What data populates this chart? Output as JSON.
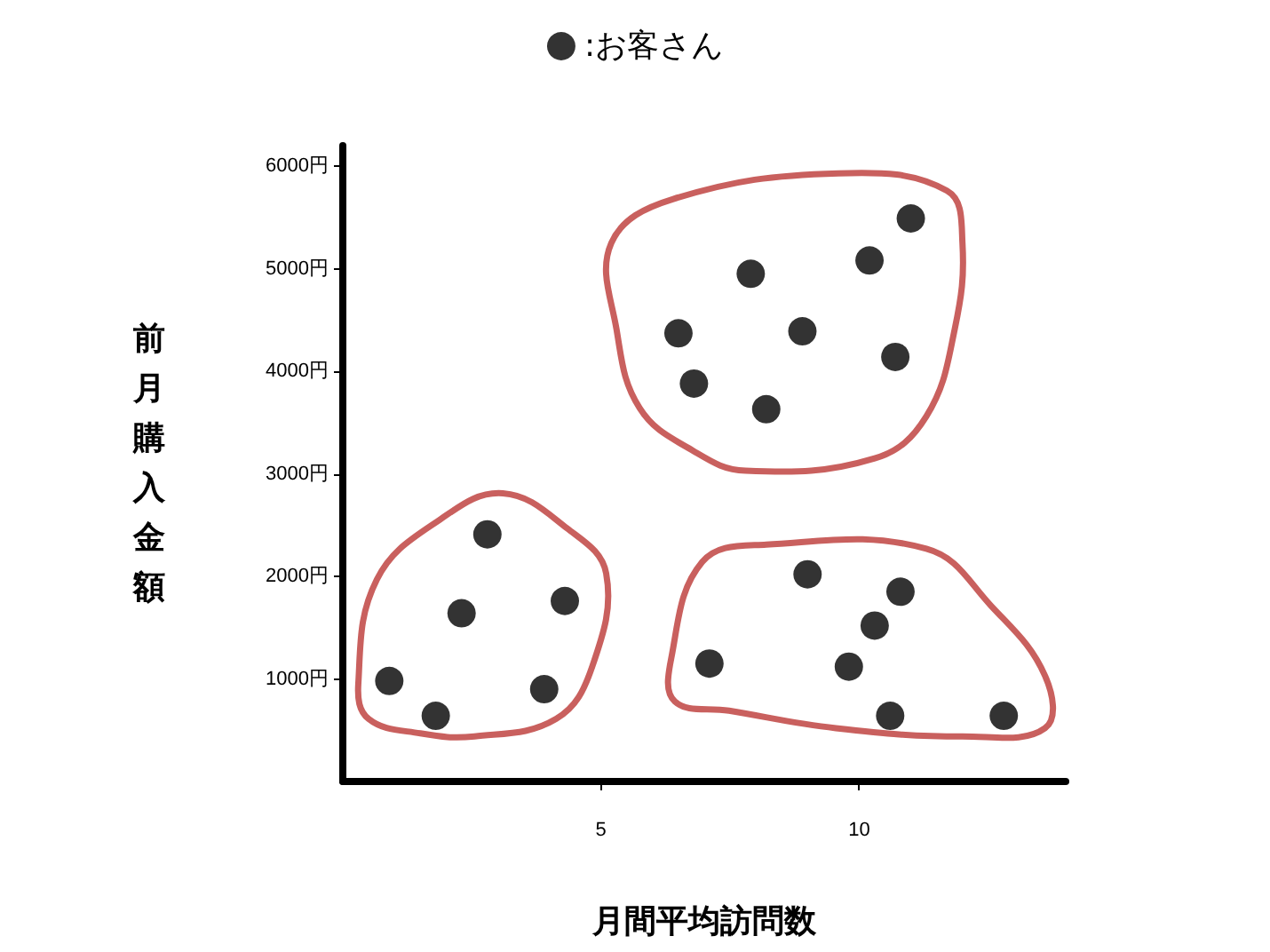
{
  "chart_data": {
    "type": "scatter",
    "xlabel": "月間平均訪問数",
    "ylabel": "前月購入金額",
    "legend": "top",
    "marker": "circle",
    "grid": false,
    "xlim": [
      0,
      14
    ],
    "xticks": [
      5,
      10
    ],
    "ylim": [
      0,
      6200
    ],
    "yticks": [
      {
        "value": 1000,
        "label": "1000円"
      },
      {
        "value": 2000,
        "label": "2000円"
      },
      {
        "value": 3000,
        "label": "3000円"
      },
      {
        "value": 4000,
        "label": "4000円"
      },
      {
        "value": 5000,
        "label": "5000円"
      },
      {
        "value": 6000,
        "label": "6000円"
      }
    ],
    "series": [
      {
        "name": ":お客さん",
        "color": "#000000",
        "x": [
          0.9,
          1.8,
          2.3,
          2.8,
          3.9,
          4.3,
          6.5,
          6.8,
          7.9,
          8.2,
          8.9,
          10.2,
          10.7,
          11.0,
          7.1,
          9.0,
          9.8,
          10.3,
          10.6,
          10.8,
          12.8
        ],
        "values": [
          980,
          640,
          1640,
          2410,
          900,
          1760,
          4370,
          3880,
          4950,
          3630,
          4390,
          5080,
          4140,
          5490,
          1150,
          2020,
          1120,
          1520,
          640,
          1850,
          640
        ]
      }
    ]
  }
}
